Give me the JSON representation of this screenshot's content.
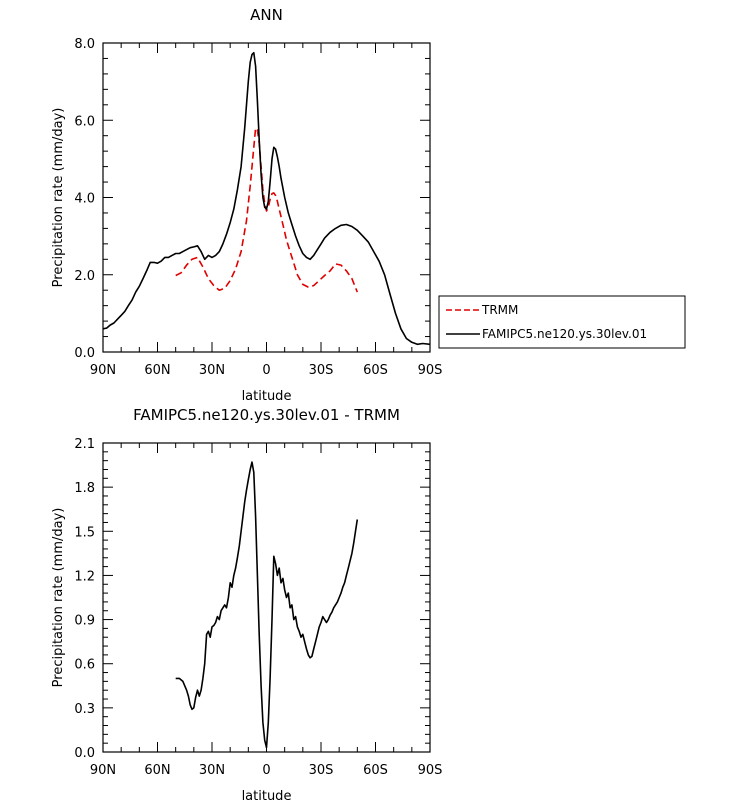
{
  "chart_data": [
    {
      "type": "line",
      "title": "ANN",
      "xlabel": "latitude",
      "ylabel": "Precipitation rate (mm/day)",
      "xlim": [
        90,
        -90
      ],
      "ylim": [
        0,
        8
      ],
      "x_ticks": [
        90,
        60,
        30,
        0,
        -30,
        -60,
        -90
      ],
      "x_tick_labels": [
        "90N",
        "60N",
        "30N",
        "0",
        "30S",
        "60S",
        "90S"
      ],
      "y_ticks": [
        0,
        2,
        4,
        6,
        8
      ],
      "y_tick_labels": [
        "0.0",
        "2.0",
        "4.0",
        "6.0",
        "8.0"
      ],
      "legend_position": "right",
      "series": [
        {
          "name": "TRMM",
          "color": "#e00000",
          "dash": "dashed",
          "x": [
            50,
            47,
            44,
            41,
            38,
            35,
            32,
            29,
            26,
            23,
            20,
            17,
            14,
            11,
            9,
            7,
            6,
            5,
            4,
            3,
            2,
            1,
            0,
            -1,
            -2,
            -3,
            -4,
            -5,
            -6,
            -7,
            -9,
            -11,
            -13,
            -15,
            -17,
            -20,
            -23,
            -26,
            -29,
            -32,
            -35,
            -38,
            -41,
            -44,
            -47,
            -50
          ],
          "y": [
            1.98,
            2.05,
            2.25,
            2.4,
            2.45,
            2.2,
            1.9,
            1.72,
            1.6,
            1.65,
            1.85,
            2.15,
            2.6,
            3.4,
            4.3,
            5.3,
            5.8,
            5.75,
            5.4,
            4.8,
            4.2,
            3.85,
            3.65,
            3.75,
            3.95,
            4.1,
            4.12,
            4.05,
            3.9,
            3.7,
            3.3,
            2.9,
            2.6,
            2.3,
            2.0,
            1.75,
            1.68,
            1.72,
            1.85,
            1.98,
            2.1,
            2.28,
            2.25,
            2.1,
            1.9,
            1.55
          ]
        },
        {
          "name": "FAMIPC5.ne120.ys.30lev.01",
          "color": "#000000",
          "dash": "solid",
          "x": [
            90,
            88,
            86,
            84,
            82,
            80,
            78,
            76,
            74,
            72,
            70,
            68,
            66,
            64,
            62,
            60,
            58,
            56,
            54,
            52,
            50,
            48,
            46,
            44,
            42,
            40,
            38,
            36,
            34,
            32,
            30,
            28,
            26,
            24,
            22,
            20,
            18,
            16,
            14,
            12,
            11,
            10,
            9,
            8,
            7,
            6,
            5,
            4,
            3,
            2,
            1,
            0,
            -1,
            -2,
            -3,
            -4,
            -5,
            -6,
            -7,
            -8,
            -10,
            -12,
            -14,
            -16,
            -18,
            -20,
            -22,
            -24,
            -26,
            -28,
            -30,
            -32,
            -35,
            -38,
            -41,
            -44,
            -47,
            -50,
            -53,
            -56,
            -59,
            -62,
            -65,
            -68,
            -71,
            -74,
            -77,
            -80,
            -83,
            -86,
            -90
          ],
          "y": [
            0.6,
            0.62,
            0.7,
            0.75,
            0.85,
            0.95,
            1.05,
            1.2,
            1.35,
            1.55,
            1.7,
            1.9,
            2.1,
            2.32,
            2.32,
            2.3,
            2.35,
            2.45,
            2.45,
            2.5,
            2.55,
            2.55,
            2.6,
            2.65,
            2.7,
            2.72,
            2.75,
            2.6,
            2.4,
            2.5,
            2.45,
            2.5,
            2.6,
            2.8,
            3.05,
            3.35,
            3.7,
            4.2,
            4.8,
            5.8,
            6.4,
            7.0,
            7.5,
            7.7,
            7.75,
            7.4,
            6.5,
            5.5,
            4.6,
            4.0,
            3.75,
            3.7,
            3.9,
            4.4,
            5.0,
            5.3,
            5.25,
            5.05,
            4.8,
            4.5,
            4.0,
            3.6,
            3.3,
            3.0,
            2.75,
            2.55,
            2.45,
            2.4,
            2.5,
            2.65,
            2.8,
            2.95,
            3.1,
            3.2,
            3.28,
            3.3,
            3.25,
            3.15,
            3.0,
            2.85,
            2.6,
            2.35,
            2.0,
            1.5,
            1.0,
            0.6,
            0.35,
            0.25,
            0.2,
            0.22,
            0.2
          ]
        }
      ]
    },
    {
      "type": "line",
      "title": "FAMIPC5.ne120.ys.30lev.01 - TRMM",
      "xlabel": "latitude",
      "ylabel": "Precipitation rate (mm/day)",
      "xlim": [
        90,
        -90
      ],
      "ylim": [
        0,
        2.1
      ],
      "x_ticks": [
        90,
        60,
        30,
        0,
        -30,
        -60,
        -90
      ],
      "x_tick_labels": [
        "90N",
        "60N",
        "30N",
        "0",
        "30S",
        "60S",
        "90S"
      ],
      "y_ticks": [
        0,
        0.3,
        0.6,
        0.9,
        1.2,
        1.5,
        1.8,
        2.1
      ],
      "y_tick_labels": [
        "0.0",
        "0.3",
        "0.6",
        "0.9",
        "1.2",
        "1.5",
        "1.8",
        "2.1"
      ],
      "series": [
        {
          "color": "#000000",
          "dash": "solid",
          "x": [
            50,
            48,
            46,
            44,
            43,
            42,
            41,
            40,
            39,
            38,
            37,
            36,
            35,
            34,
            33,
            32,
            31,
            30,
            29,
            28,
            27,
            26,
            25,
            24,
            23,
            22,
            21,
            20,
            19,
            18,
            17,
            16,
            15,
            14,
            13,
            12,
            11,
            10,
            9,
            8,
            7,
            6,
            5,
            4,
            3,
            2,
            1,
            0,
            -1,
            -2,
            -3,
            -4,
            -5,
            -6,
            -7,
            -8,
            -9,
            -10,
            -11,
            -12,
            -13,
            -14,
            -15,
            -16,
            -17,
            -18,
            -19,
            -20,
            -21,
            -22,
            -23,
            -24,
            -25,
            -26,
            -27,
            -28,
            -29,
            -30,
            -31,
            -32,
            -33,
            -34,
            -35,
            -36,
            -37,
            -38,
            -39,
            -40,
            -41,
            -42,
            -43,
            -44,
            -45,
            -46,
            -47,
            -48,
            -49,
            -50
          ],
          "y": [
            0.5,
            0.5,
            0.48,
            0.42,
            0.38,
            0.32,
            0.29,
            0.3,
            0.37,
            0.42,
            0.38,
            0.42,
            0.5,
            0.6,
            0.8,
            0.82,
            0.78,
            0.85,
            0.86,
            0.88,
            0.92,
            0.9,
            0.96,
            0.98,
            1.0,
            0.98,
            1.05,
            1.15,
            1.12,
            1.2,
            1.25,
            1.32,
            1.4,
            1.5,
            1.6,
            1.7,
            1.78,
            1.85,
            1.92,
            1.97,
            1.9,
            1.6,
            1.2,
            0.8,
            0.45,
            0.2,
            0.08,
            0.03,
            0.2,
            0.5,
            0.9,
            1.33,
            1.28,
            1.2,
            1.25,
            1.15,
            1.18,
            1.1,
            1.05,
            1.08,
            0.98,
            1.0,
            0.9,
            0.92,
            0.85,
            0.82,
            0.78,
            0.8,
            0.75,
            0.7,
            0.66,
            0.64,
            0.65,
            0.7,
            0.75,
            0.8,
            0.85,
            0.88,
            0.92,
            0.9,
            0.88,
            0.9,
            0.93,
            0.95,
            0.98,
            1.0,
            1.02,
            1.05,
            1.08,
            1.12,
            1.15,
            1.2,
            1.25,
            1.3,
            1.35,
            1.42,
            1.5,
            1.58
          ]
        }
      ]
    }
  ]
}
